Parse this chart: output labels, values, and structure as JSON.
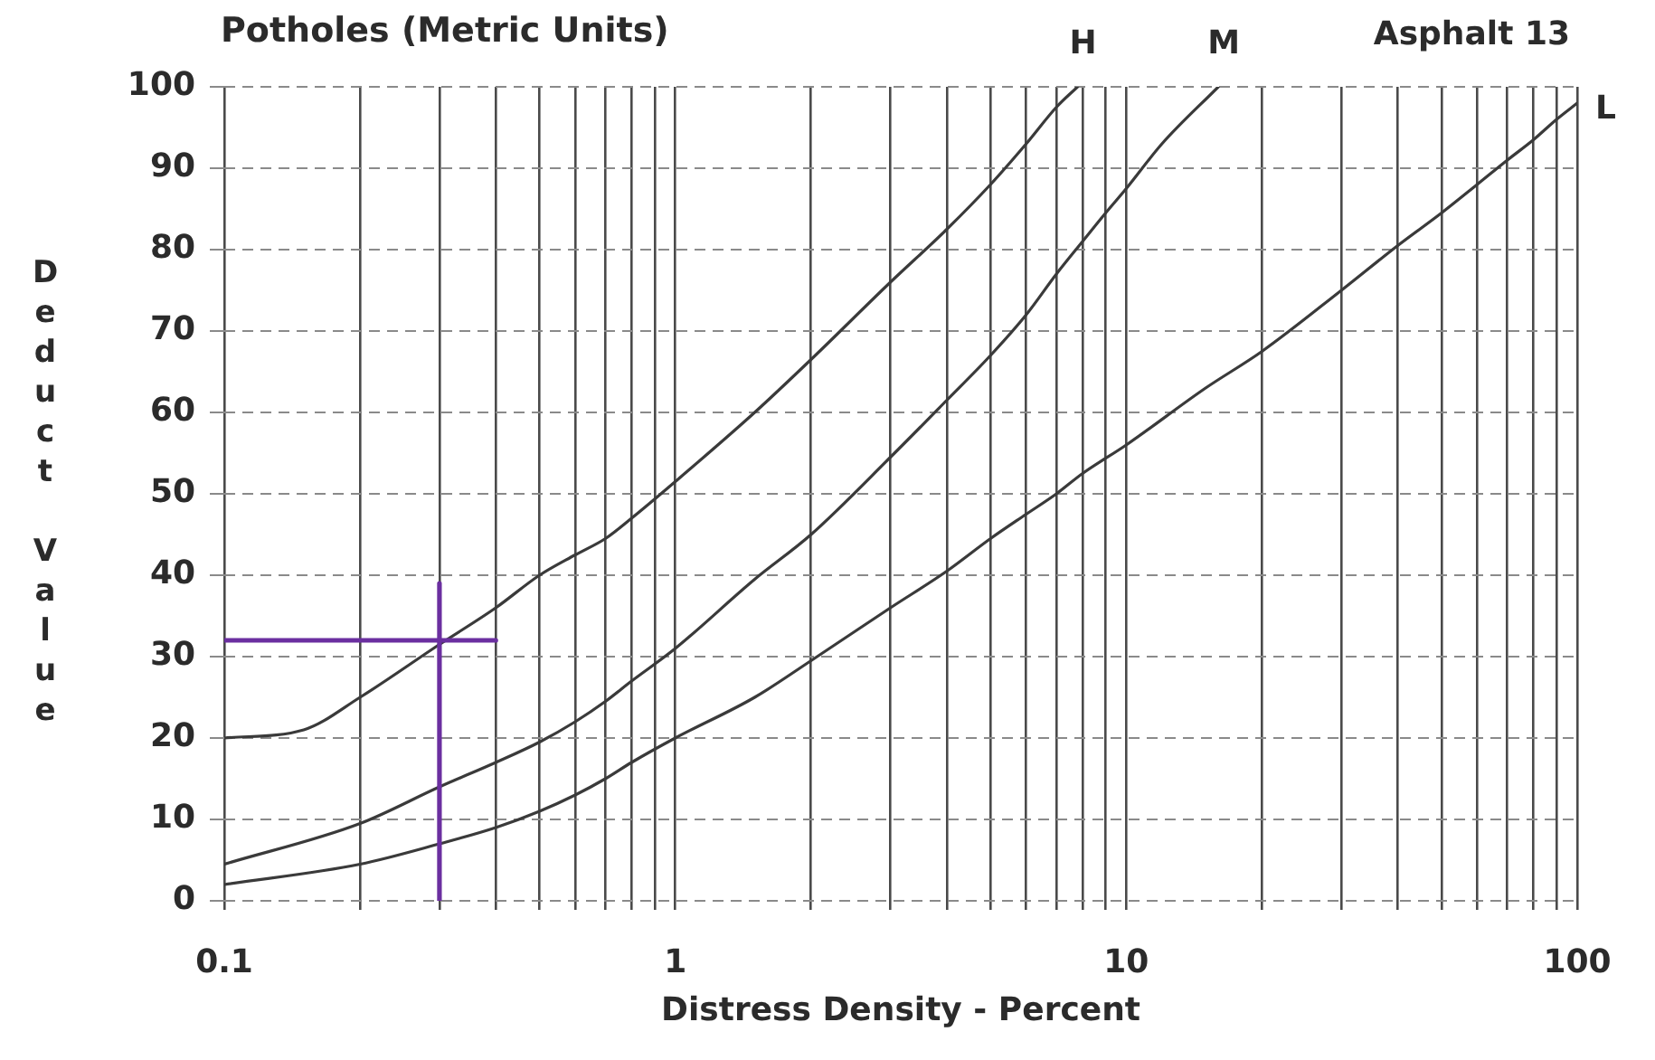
{
  "chart_data": {
    "type": "line",
    "title": "Potholes (Metric Units)",
    "xlabel": "Distress Density - Percent",
    "ylabel": "Deduct Value",
    "annotations": [
      "Asphalt 13"
    ],
    "log": "x",
    "grid": true,
    "legend": false,
    "xlim": [
      0.1,
      100
    ],
    "xticks": [
      0.1,
      {
        "value": 0.2,
        "label": null
      },
      {
        "value": 0.3,
        "label": null
      },
      {
        "value": 0.4,
        "label": null
      },
      {
        "value": 0.5,
        "label": null
      },
      {
        "value": 0.6,
        "label": null
      },
      {
        "value": 0.7,
        "label": null
      },
      {
        "value": 0.8,
        "label": null
      },
      {
        "value": 0.9,
        "label": null
      },
      1,
      {
        "value": 2,
        "label": null
      },
      {
        "value": 3,
        "label": null
      },
      {
        "value": 4,
        "label": null
      },
      {
        "value": 5,
        "label": null
      },
      {
        "value": 6,
        "label": null
      },
      {
        "value": 7,
        "label": null
      },
      {
        "value": 8,
        "label": null
      },
      {
        "value": 9,
        "label": null
      },
      10,
      {
        "value": 20,
        "label": null
      },
      {
        "value": 30,
        "label": null
      },
      {
        "value": 40,
        "label": null
      },
      {
        "value": 50,
        "label": null
      },
      {
        "value": 60,
        "label": null
      },
      {
        "value": 70,
        "label": null
      },
      {
        "value": 80,
        "label": null
      },
      {
        "value": 90,
        "label": null
      },
      100
    ],
    "ylim": [
      0,
      100
    ],
    "yticks": [
      0,
      10,
      20,
      30,
      40,
      50,
      60,
      70,
      80,
      90,
      100
    ],
    "series": [
      {
        "name": "H",
        "color": "#3a3a3a",
        "x": [
          0.1,
          0.15,
          0.2,
          0.3,
          0.4,
          0.5,
          0.6,
          0.7,
          0.8,
          1,
          1.5,
          2,
          3,
          4,
          5,
          6,
          7,
          7.8
        ],
        "values": [
          20,
          21,
          25,
          31.5,
          36,
          40,
          42.5,
          44.5,
          47,
          51.5,
          60,
          66.5,
          76,
          82.5,
          88,
          93,
          97.5,
          100
        ]
      },
      {
        "name": "M",
        "color": "#3a3a3a",
        "x": [
          0.1,
          0.2,
          0.3,
          0.4,
          0.5,
          0.6,
          0.7,
          0.8,
          1,
          1.5,
          2,
          3,
          4,
          5,
          6,
          7,
          8,
          9,
          10,
          12,
          16
        ],
        "values": [
          4.5,
          9.5,
          14,
          17,
          19.5,
          22,
          24.5,
          27,
          31,
          39.5,
          45,
          54.5,
          61.5,
          67,
          72,
          77,
          81,
          84.5,
          87.5,
          93,
          100
        ]
      },
      {
        "name": "L",
        "color": "#3a3a3a",
        "x": [
          0.1,
          0.2,
          0.3,
          0.4,
          0.5,
          0.6,
          0.7,
          0.8,
          1,
          1.5,
          2,
          3,
          4,
          5,
          6,
          7,
          8,
          10,
          15,
          20,
          30,
          40,
          50,
          60,
          70,
          80,
          90,
          100
        ],
        "values": [
          2,
          4.5,
          7,
          9,
          11,
          13,
          15,
          17,
          20,
          25,
          29.5,
          36,
          40.5,
          44.5,
          47.5,
          50,
          52.5,
          56,
          63,
          67.5,
          75,
          80.5,
          84.5,
          88,
          91,
          93.5,
          96,
          98
        ]
      },
      {
        "color": "#6b2fa0",
        "x": [
          0.1,
          0.4
        ],
        "values": [
          32,
          32
        ]
      },
      {
        "color": "#6b2fa0",
        "x": [
          0.3,
          0.3
        ],
        "values": [
          0,
          39
        ]
      }
    ]
  }
}
